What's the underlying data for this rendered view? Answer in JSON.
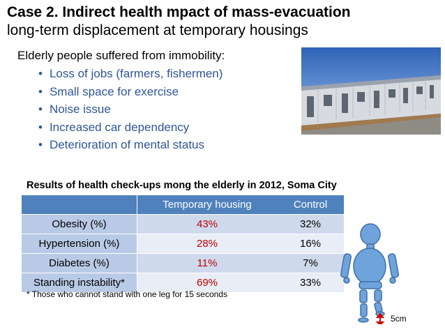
{
  "header": {
    "title": "Case 2. Indirect health mpact of mass-evacuation",
    "subtitle": "long-term displacement at temporary housings"
  },
  "intro": "Elderly people suffered from immobility:",
  "bullets": [
    "Loss of jobs (farmers, fishermen)",
    "Small space for exercise",
    "Noise issue",
    "Increased car dependency",
    "Deterioration of mental status"
  ],
  "table": {
    "title": "Results of health check-ups  mong the elderly in 2012, Soma City",
    "headers": [
      "",
      "Temporary housing",
      "Control"
    ],
    "rows": [
      [
        "Obesity (%)",
        "43%",
        "32%"
      ],
      [
        "Hypertension (%)",
        "28%",
        "16%"
      ],
      [
        "Diabetes (%)",
        "11%",
        "7%"
      ],
      [
        "Standing instability*",
        "69%",
        "33%"
      ]
    ],
    "footnote": "* Those who cannot stand with one leg for 15 seconds"
  },
  "figure": {
    "measure_label": "5cm"
  },
  "colors": {
    "bullet_text": "#2f5597",
    "header_bg": "#4f81bd",
    "highlight": "#c00000"
  }
}
